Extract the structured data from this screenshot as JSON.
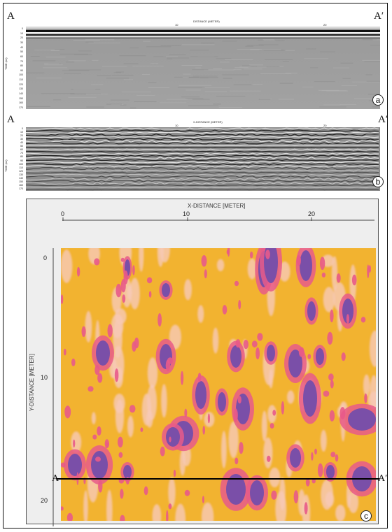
{
  "figure": {
    "panel_a": {
      "left_label": "A",
      "right_label": "A′",
      "x_axis_title": "DISTANCE (METER)",
      "x_ticks": [
        "10",
        "20"
      ],
      "y_axis_title": "TIME (ns)",
      "y_ticks": [
        "0",
        "10",
        "20",
        "30",
        "40",
        "50",
        "60",
        "70",
        "80",
        "90",
        "100",
        "110",
        "120",
        "130",
        "140",
        "150",
        "160",
        "170"
      ],
      "badge": "a"
    },
    "panel_b": {
      "left_label": "A",
      "right_label": "A′",
      "x_axis_title": "X-DISTANCE (METER)",
      "x_ticks": [
        "10",
        "20"
      ],
      "y_axis_title": "TIME (ns)",
      "y_ticks": [
        "0",
        "10",
        "20",
        "30",
        "40",
        "50",
        "60",
        "70",
        "80",
        "90",
        "100",
        "110",
        "120",
        "130",
        "140",
        "150",
        "160",
        "170"
      ],
      "badge": "b"
    },
    "panel_c": {
      "x_axis_title": "X-DISTANCE [METER]",
      "x_ticks": [
        "0",
        "10",
        "20"
      ],
      "y_axis_title": "Y-DISTANCE [METER]",
      "y_ticks": [
        "0",
        "10",
        "20"
      ],
      "line_left_label": "A",
      "line_right_label": "A′",
      "badge": "c",
      "colors": {
        "background": "#f2b330",
        "mid": "#e85a8a",
        "anomaly": "#7a4fa8",
        "pale": "#f6c9b8"
      }
    }
  }
}
